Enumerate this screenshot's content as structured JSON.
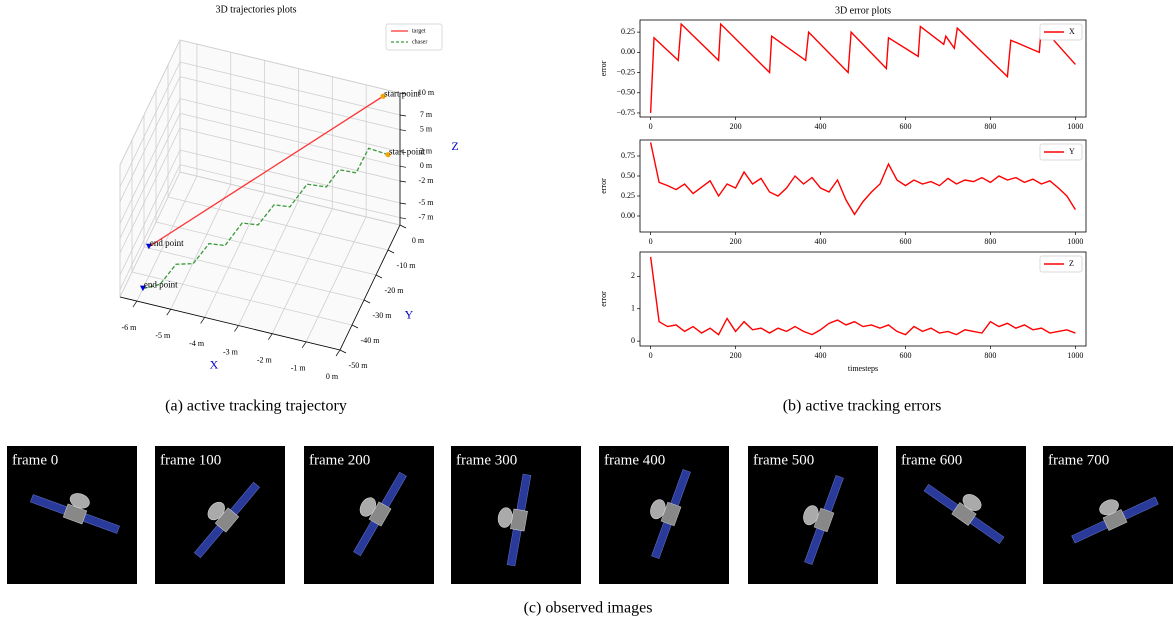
{
  "chart_data": [
    {
      "type": "line3d",
      "title": "3D trajectories plots",
      "xlim": [
        -6.5,
        0
      ],
      "ylim": [
        -50,
        0
      ],
      "zlim": [
        -8,
        10
      ],
      "xlabel": "X",
      "ylabel": "Y",
      "zlabel": "Z",
      "xticks": [
        {
          "value": -6,
          "label": "-6 m"
        },
        {
          "value": -5,
          "label": "-5 m"
        },
        {
          "value": -4,
          "label": "-4 m"
        },
        {
          "value": -3,
          "label": "-3 m"
        },
        {
          "value": -2,
          "label": "-2 m"
        },
        {
          "value": -1,
          "label": "-1 m"
        },
        {
          "value": 0,
          "label": "0 m"
        }
      ],
      "yticks": [
        {
          "value": 0,
          "label": "0 m"
        },
        {
          "value": -10,
          "label": "-10 m"
        },
        {
          "value": -20,
          "label": "-20 m"
        },
        {
          "value": -30,
          "label": "-30 m"
        },
        {
          "value": -40,
          "label": "-40 m"
        },
        {
          "value": -50,
          "label": "-50 m"
        }
      ],
      "zticks": [
        {
          "value": 10,
          "label": "10 m"
        },
        {
          "value": 7,
          "label": "7 m"
        },
        {
          "value": 5,
          "label": "5 m"
        },
        {
          "value": 2,
          "label": "2 m"
        },
        {
          "value": 0,
          "label": "0 m"
        },
        {
          "value": -2,
          "label": "-2 m"
        },
        {
          "value": -5,
          "label": "-5 m"
        },
        {
          "value": -7,
          "label": "-7 m"
        }
      ],
      "legend": "upper right",
      "grid": true,
      "series": [
        {
          "name": "target",
          "color": "#ff3333",
          "style": "solid",
          "start_label": "start point",
          "end_label": "end point",
          "x": [
            -0.5,
            -6
          ],
          "y": [
            0,
            -40
          ],
          "z": [
            9,
            -4
          ]
        },
        {
          "name": "chaser",
          "color": "#3a9a3a",
          "style": "dashed",
          "start_label": "start point",
          "end_label": "end point",
          "x": [
            0,
            -0.5,
            -0.8,
            -1.2,
            -1.5,
            -2,
            -2.4,
            -2.8,
            -3.2,
            -3.6,
            -4,
            -4.4,
            -4.8,
            -5.2,
            -5.6,
            -6
          ],
          "y": [
            -10,
            -12,
            -14,
            -17,
            -19,
            -21,
            -24,
            -26,
            -28,
            -30,
            -33,
            -35,
            -37,
            -40,
            -42,
            -45
          ],
          "z": [
            5,
            6,
            3,
            4,
            2,
            2.5,
            0,
            0.5,
            -2,
            -1.5,
            -4,
            -3.5,
            -6,
            -5.5,
            -8,
            -8
          ]
        }
      ]
    },
    {
      "type": "line",
      "title": "3D error plots",
      "ylabel": "error",
      "x": [
        0,
        8,
        65,
        72,
        160,
        165,
        280,
        285,
        365,
        372,
        465,
        472,
        555,
        560,
        630,
        635,
        690,
        695,
        715,
        722,
        840,
        848,
        915,
        920,
        1000
      ],
      "series": [
        {
          "name": "X",
          "color": "#ff0000",
          "values": [
            -0.75,
            0.18,
            -0.1,
            0.35,
            -0.1,
            0.35,
            -0.25,
            0.2,
            -0.1,
            0.25,
            -0.25,
            0.25,
            -0.2,
            0.18,
            -0.05,
            0.32,
            0.1,
            0.2,
            0.05,
            0.3,
            -0.3,
            0.15,
            0.0,
            0.32,
            -0.15
          ]
        }
      ],
      "xlim": [
        -25,
        1025
      ],
      "xticks": [
        0,
        200,
        400,
        600,
        800,
        1000
      ],
      "ylim": [
        -0.8,
        0.4
      ],
      "yticks": [
        {
          "value": -0.75,
          "label": "−0.75"
        },
        {
          "value": -0.5,
          "label": "−0.50"
        },
        {
          "value": -0.25,
          "label": "−0.25"
        },
        {
          "value": 0,
          "label": "0.00"
        },
        {
          "value": 0.25,
          "label": "0.25"
        }
      ],
      "legend": "upper right"
    },
    {
      "type": "line",
      "ylabel": "error",
      "x": [
        0,
        20,
        40,
        60,
        80,
        100,
        120,
        140,
        160,
        180,
        200,
        220,
        240,
        260,
        280,
        300,
        320,
        340,
        360,
        380,
        400,
        420,
        440,
        460,
        480,
        500,
        520,
        540,
        560,
        580,
        600,
        620,
        640,
        660,
        680,
        700,
        720,
        740,
        760,
        780,
        800,
        820,
        840,
        860,
        880,
        900,
        920,
        940,
        960,
        980,
        1000
      ],
      "series": [
        {
          "name": "Y",
          "color": "#ff0000",
          "values": [
            0.92,
            0.42,
            0.38,
            0.33,
            0.4,
            0.28,
            0.36,
            0.44,
            0.25,
            0.4,
            0.35,
            0.55,
            0.4,
            0.47,
            0.3,
            0.25,
            0.35,
            0.5,
            0.4,
            0.48,
            0.35,
            0.3,
            0.45,
            0.2,
            0.02,
            0.18,
            0.3,
            0.4,
            0.65,
            0.45,
            0.38,
            0.45,
            0.4,
            0.43,
            0.38,
            0.47,
            0.4,
            0.45,
            0.43,
            0.48,
            0.42,
            0.5,
            0.45,
            0.48,
            0.42,
            0.46,
            0.4,
            0.44,
            0.35,
            0.25,
            0.08
          ]
        }
      ],
      "xlim": [
        -25,
        1025
      ],
      "xticks": [
        0,
        200,
        400,
        600,
        800,
        1000
      ],
      "ylim": [
        -0.2,
        0.95
      ],
      "yticks": [
        {
          "value": 0,
          "label": "0.00"
        },
        {
          "value": 0.25,
          "label": "0.25"
        },
        {
          "value": 0.5,
          "label": "0.50"
        },
        {
          "value": 0.75,
          "label": "0.75"
        }
      ],
      "legend": "upper right"
    },
    {
      "type": "line",
      "ylabel": "error",
      "xlabel": "timesteps",
      "x": [
        0,
        20,
        40,
        60,
        80,
        100,
        120,
        140,
        160,
        180,
        200,
        220,
        240,
        260,
        280,
        300,
        320,
        340,
        360,
        380,
        400,
        420,
        440,
        460,
        480,
        500,
        520,
        540,
        560,
        580,
        600,
        620,
        640,
        660,
        680,
        700,
        720,
        740,
        760,
        780,
        800,
        820,
        840,
        860,
        880,
        900,
        920,
        940,
        960,
        980,
        1000
      ],
      "series": [
        {
          "name": "Z",
          "color": "#ff0000",
          "values": [
            2.6,
            0.6,
            0.45,
            0.5,
            0.3,
            0.45,
            0.25,
            0.4,
            0.2,
            0.7,
            0.3,
            0.6,
            0.35,
            0.4,
            0.25,
            0.4,
            0.3,
            0.45,
            0.3,
            0.2,
            0.35,
            0.55,
            0.65,
            0.5,
            0.6,
            0.45,
            0.5,
            0.4,
            0.5,
            0.3,
            0.2,
            0.45,
            0.3,
            0.4,
            0.25,
            0.3,
            0.2,
            0.35,
            0.3,
            0.25,
            0.6,
            0.45,
            0.55,
            0.4,
            0.5,
            0.35,
            0.4,
            0.25,
            0.3,
            0.35,
            0.25
          ]
        }
      ],
      "xlim": [
        -25,
        1025
      ],
      "xticks": [
        0,
        200,
        400,
        600,
        800,
        1000
      ],
      "ylim": [
        -0.15,
        2.75
      ],
      "yticks": [
        0,
        1,
        2
      ],
      "legend": "upper right"
    }
  ],
  "captions": {
    "a": "(a) active tracking trajectory",
    "b": "(b) active tracking errors",
    "c": "(c) observed images"
  },
  "frames": [
    "frame 0",
    "frame 100",
    "frame 200",
    "frame 300",
    "frame 400",
    "frame 500",
    "frame 600",
    "frame 700"
  ]
}
